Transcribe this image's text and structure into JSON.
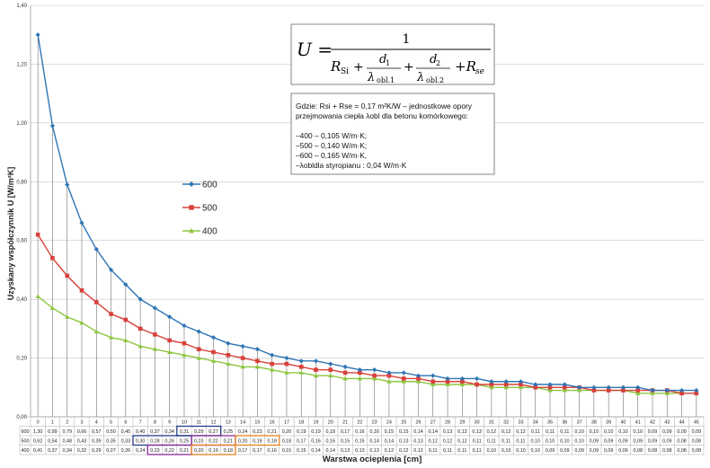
{
  "chart_data": {
    "type": "line",
    "xlabel": "Warstwa ocieplenia [cm]",
    "ylabel": "Uzyskany współczynnik U [W/m²K]",
    "ylim": [
      0,
      1.4
    ],
    "y_ticks": [
      "0,00",
      "0,20",
      "0,40",
      "0,60",
      "0,80",
      "1,00",
      "1,20",
      "1,40"
    ],
    "x": [
      0,
      1,
      2,
      3,
      4,
      5,
      6,
      7,
      8,
      9,
      10,
      11,
      12,
      13,
      14,
      15,
      16,
      17,
      18,
      19,
      20,
      21,
      22,
      23,
      24,
      25,
      26,
      27,
      28,
      29,
      30,
      31,
      32,
      33,
      34,
      35,
      36,
      37,
      38,
      39,
      40,
      41,
      42,
      43,
      44,
      45
    ],
    "grid": true,
    "legend_position": "center-left",
    "series": [
      {
        "name": "600",
        "color": "#2e75b6",
        "marker": "diamond",
        "values": [
          1.3,
          0.99,
          0.79,
          0.66,
          0.57,
          0.5,
          0.45,
          0.4,
          0.37,
          0.34,
          0.31,
          0.29,
          0.27,
          0.25,
          0.24,
          0.23,
          0.21,
          0.2,
          0.19,
          0.19,
          0.18,
          0.17,
          0.16,
          0.16,
          0.15,
          0.15,
          0.14,
          0.14,
          0.13,
          0.13,
          0.13,
          0.12,
          0.12,
          0.12,
          0.11,
          0.11,
          0.11,
          0.1,
          0.1,
          0.1,
          0.1,
          0.1,
          0.09,
          0.09,
          0.09,
          0.09
        ]
      },
      {
        "name": "500",
        "color": "#d9403a",
        "marker": "square",
        "values": [
          0.62,
          0.54,
          0.48,
          0.43,
          0.39,
          0.35,
          0.33,
          0.3,
          0.28,
          0.26,
          0.25,
          0.23,
          0.22,
          0.21,
          0.2,
          0.19,
          0.18,
          0.18,
          0.17,
          0.16,
          0.16,
          0.15,
          0.15,
          0.14,
          0.14,
          0.13,
          0.13,
          0.12,
          0.12,
          0.12,
          0.11,
          0.11,
          0.11,
          0.11,
          0.1,
          0.1,
          0.1,
          0.1,
          0.09,
          0.09,
          0.09,
          0.09,
          0.09,
          0.09,
          0.08,
          0.08
        ]
      },
      {
        "name": "400",
        "color": "#8dc63f",
        "marker": "triangle",
        "values": [
          0.41,
          0.37,
          0.34,
          0.32,
          0.29,
          0.27,
          0.26,
          0.24,
          0.23,
          0.22,
          0.21,
          0.2,
          0.19,
          0.18,
          0.17,
          0.17,
          0.16,
          0.15,
          0.15,
          0.14,
          0.14,
          0.13,
          0.13,
          0.13,
          0.12,
          0.12,
          0.12,
          0.11,
          0.11,
          0.11,
          0.11,
          0.1,
          0.1,
          0.1,
          0.1,
          0.09,
          0.09,
          0.09,
          0.09,
          0.09,
          0.09,
          0.08,
          0.08,
          0.08,
          0.08,
          0.08
        ]
      }
    ],
    "table": {
      "row_labels": [
        "600",
        "500",
        "400"
      ],
      "highlights": [
        {
          "row": 0,
          "from": 10,
          "to": 12,
          "color": "#1f3b8c"
        },
        {
          "row": 1,
          "from": 7,
          "to": 10,
          "color": "#1f3b8c"
        },
        {
          "row": 1,
          "from": 11,
          "to": 13,
          "color": "#8b2a9c"
        },
        {
          "row": 1,
          "from": 14,
          "to": 16,
          "color": "#e6821e"
        },
        {
          "row": 2,
          "from": 8,
          "to": 10,
          "color": "#8b2a9c"
        },
        {
          "row": 2,
          "from": 11,
          "to": 13,
          "color": "#e6821e"
        }
      ]
    },
    "formula": {
      "lhs": "U =",
      "numerator": "1",
      "denominator_parts": [
        "R",
        "Si",
        "+",
        "d",
        "1",
        "λ",
        "obl.1",
        "+",
        "d",
        "2",
        "λ",
        "obl.2",
        "+R",
        "se"
      ]
    },
    "note_lines": [
      "Gdzie: Rsi + Rse = 0,17 m²K/W – jednostkowe opory",
      "przejmowania ciepła λobl dla betonu komórkowego:",
      "",
      "–400 – 0,105 W/m·K;",
      "–500 – 0,140 W/m·K;",
      "–600 – 0,165 W/m·K,",
      "–λobldla styropianu : 0,04 W/m·K"
    ]
  }
}
